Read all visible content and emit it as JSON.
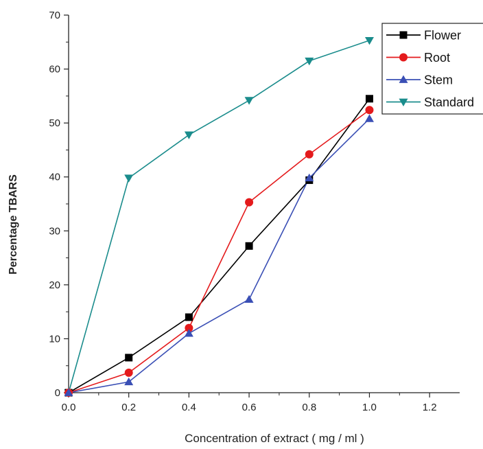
{
  "chart_data": {
    "type": "line",
    "title": "",
    "xlabel": "Concentration of extract ( mg / ml )",
    "ylabel": "Percentage TBARS",
    "xlim": [
      0,
      1.3
    ],
    "ylim": [
      0,
      70
    ],
    "x_ticks": [
      "0.0",
      "0.2",
      "0.4",
      "0.6",
      "0.8",
      "1.0",
      "1.2"
    ],
    "y_ticks": [
      "0",
      "10",
      "20",
      "30",
      "40",
      "50",
      "60",
      "70"
    ],
    "x": [
      0,
      0.2,
      0.4,
      0.6,
      0.8,
      1.0
    ],
    "grid": false,
    "legend_position": "top-right",
    "series": [
      {
        "name": "Flower",
        "color": "#000000",
        "marker": "square",
        "values": [
          0,
          6.5,
          14,
          27.2,
          39.4,
          54.5
        ]
      },
      {
        "name": "Root",
        "color": "#e41a1c",
        "marker": "circle",
        "values": [
          0,
          3.7,
          12,
          35.3,
          44.2,
          52.4
        ]
      },
      {
        "name": "Stem",
        "color": "#3a4fb5",
        "marker": "triangle-up",
        "values": [
          0,
          2.0,
          11,
          17.3,
          39.8,
          50.8
        ]
      },
      {
        "name": "Standard",
        "color": "#1a8c8c",
        "marker": "triangle-down",
        "values": [
          0,
          39.8,
          47.8,
          54.2,
          61.5,
          65.3
        ]
      }
    ]
  }
}
